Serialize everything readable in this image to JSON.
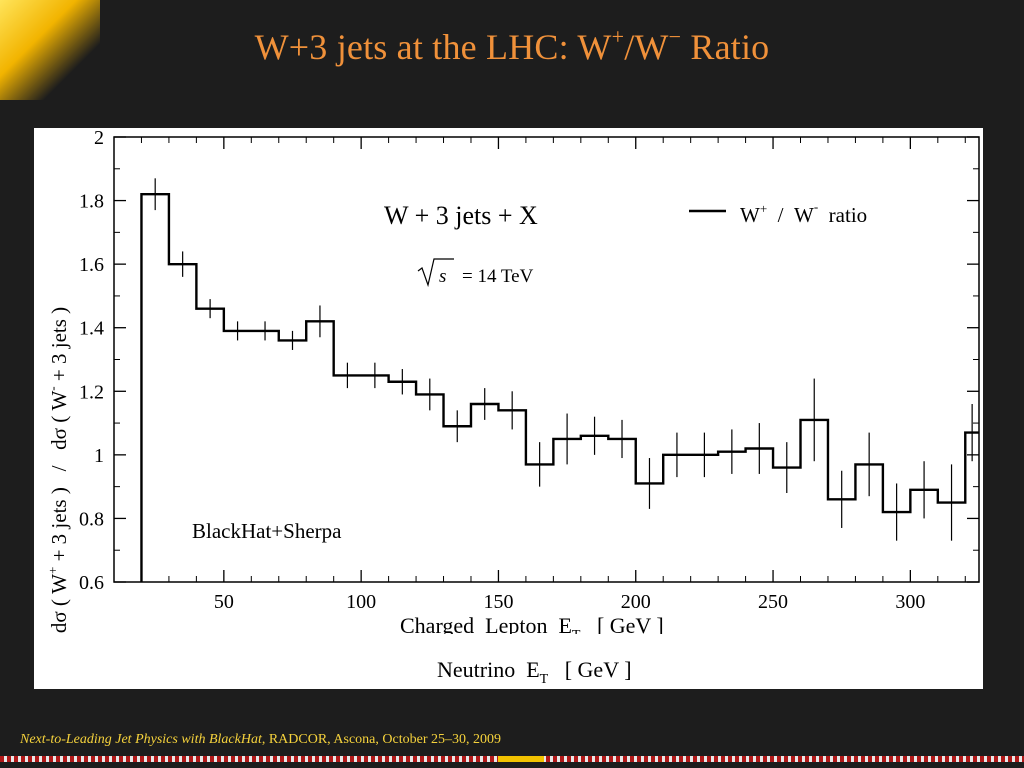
{
  "slide": {
    "title_main": "W+3 jets at the LHC: W",
    "title_sup1": "+",
    "title_mid": "/W",
    "title_sup2": "−",
    "title_end": " Ratio",
    "footer_italic": "Next-to-Leading Jet Physics with BlackHat",
    "footer_rest": ", RADCOR, Ascona, October 25–30, 2009"
  },
  "colors": {
    "background": "#1d1d1d",
    "title": "#f0913a",
    "footer": "#f5d23c",
    "panel": "#ffffff",
    "ink": "#000000"
  },
  "chart_data": {
    "type": "line",
    "style": "step histogram with error bars",
    "annotation_main": "W + 3 jets + X",
    "annotation_energy": "= 14 TeV",
    "annotation_energy_symbol": "√s",
    "annotation_generator": "BlackHat+Sherpa",
    "legend": {
      "label": "W+ / W- ratio",
      "position": "top-right"
    },
    "ylabel": "dσ ( W+ + 3 jets ) / dσ ( W- + 3 jets )",
    "xlabel": "Charged Lepton E_T [ GeV ]",
    "xlabel2": "Neutrino E_T [ GeV ]",
    "xlim": [
      10,
      325
    ],
    "ylim": [
      0.6,
      2.0
    ],
    "xticks": [
      50,
      100,
      150,
      200,
      250,
      300
    ],
    "yticks": [
      0.6,
      0.8,
      1.0,
      1.2,
      1.4,
      1.6,
      1.8,
      2.0
    ],
    "ytick_labels": [
      "0.6",
      "0.8",
      "1",
      "1.2",
      "1.4",
      "1.6",
      "1.8",
      "2"
    ],
    "series": [
      {
        "name": "W+ / W- ratio",
        "bin_edges": [
          20,
          30,
          40,
          50,
          60,
          70,
          80,
          90,
          100,
          110,
          120,
          130,
          140,
          150,
          160,
          170,
          180,
          190,
          200,
          210,
          220,
          230,
          240,
          250,
          260,
          270,
          280,
          290,
          300,
          310,
          320,
          325
        ],
        "values": [
          1.82,
          1.6,
          1.46,
          1.39,
          1.39,
          1.36,
          1.42,
          1.25,
          1.25,
          1.23,
          1.19,
          1.09,
          1.16,
          1.14,
          0.97,
          1.05,
          1.06,
          1.05,
          0.91,
          1.0,
          1.0,
          1.01,
          1.02,
          0.96,
          1.11,
          0.86,
          0.97,
          0.82,
          0.89,
          0.85,
          1.07
        ],
        "errors": [
          0.05,
          0.04,
          0.03,
          0.03,
          0.03,
          0.03,
          0.05,
          0.04,
          0.04,
          0.04,
          0.05,
          0.05,
          0.05,
          0.06,
          0.07,
          0.08,
          0.06,
          0.06,
          0.08,
          0.07,
          0.07,
          0.07,
          0.08,
          0.08,
          0.13,
          0.09,
          0.1,
          0.09,
          0.09,
          0.12,
          0.09
        ]
      }
    ]
  }
}
